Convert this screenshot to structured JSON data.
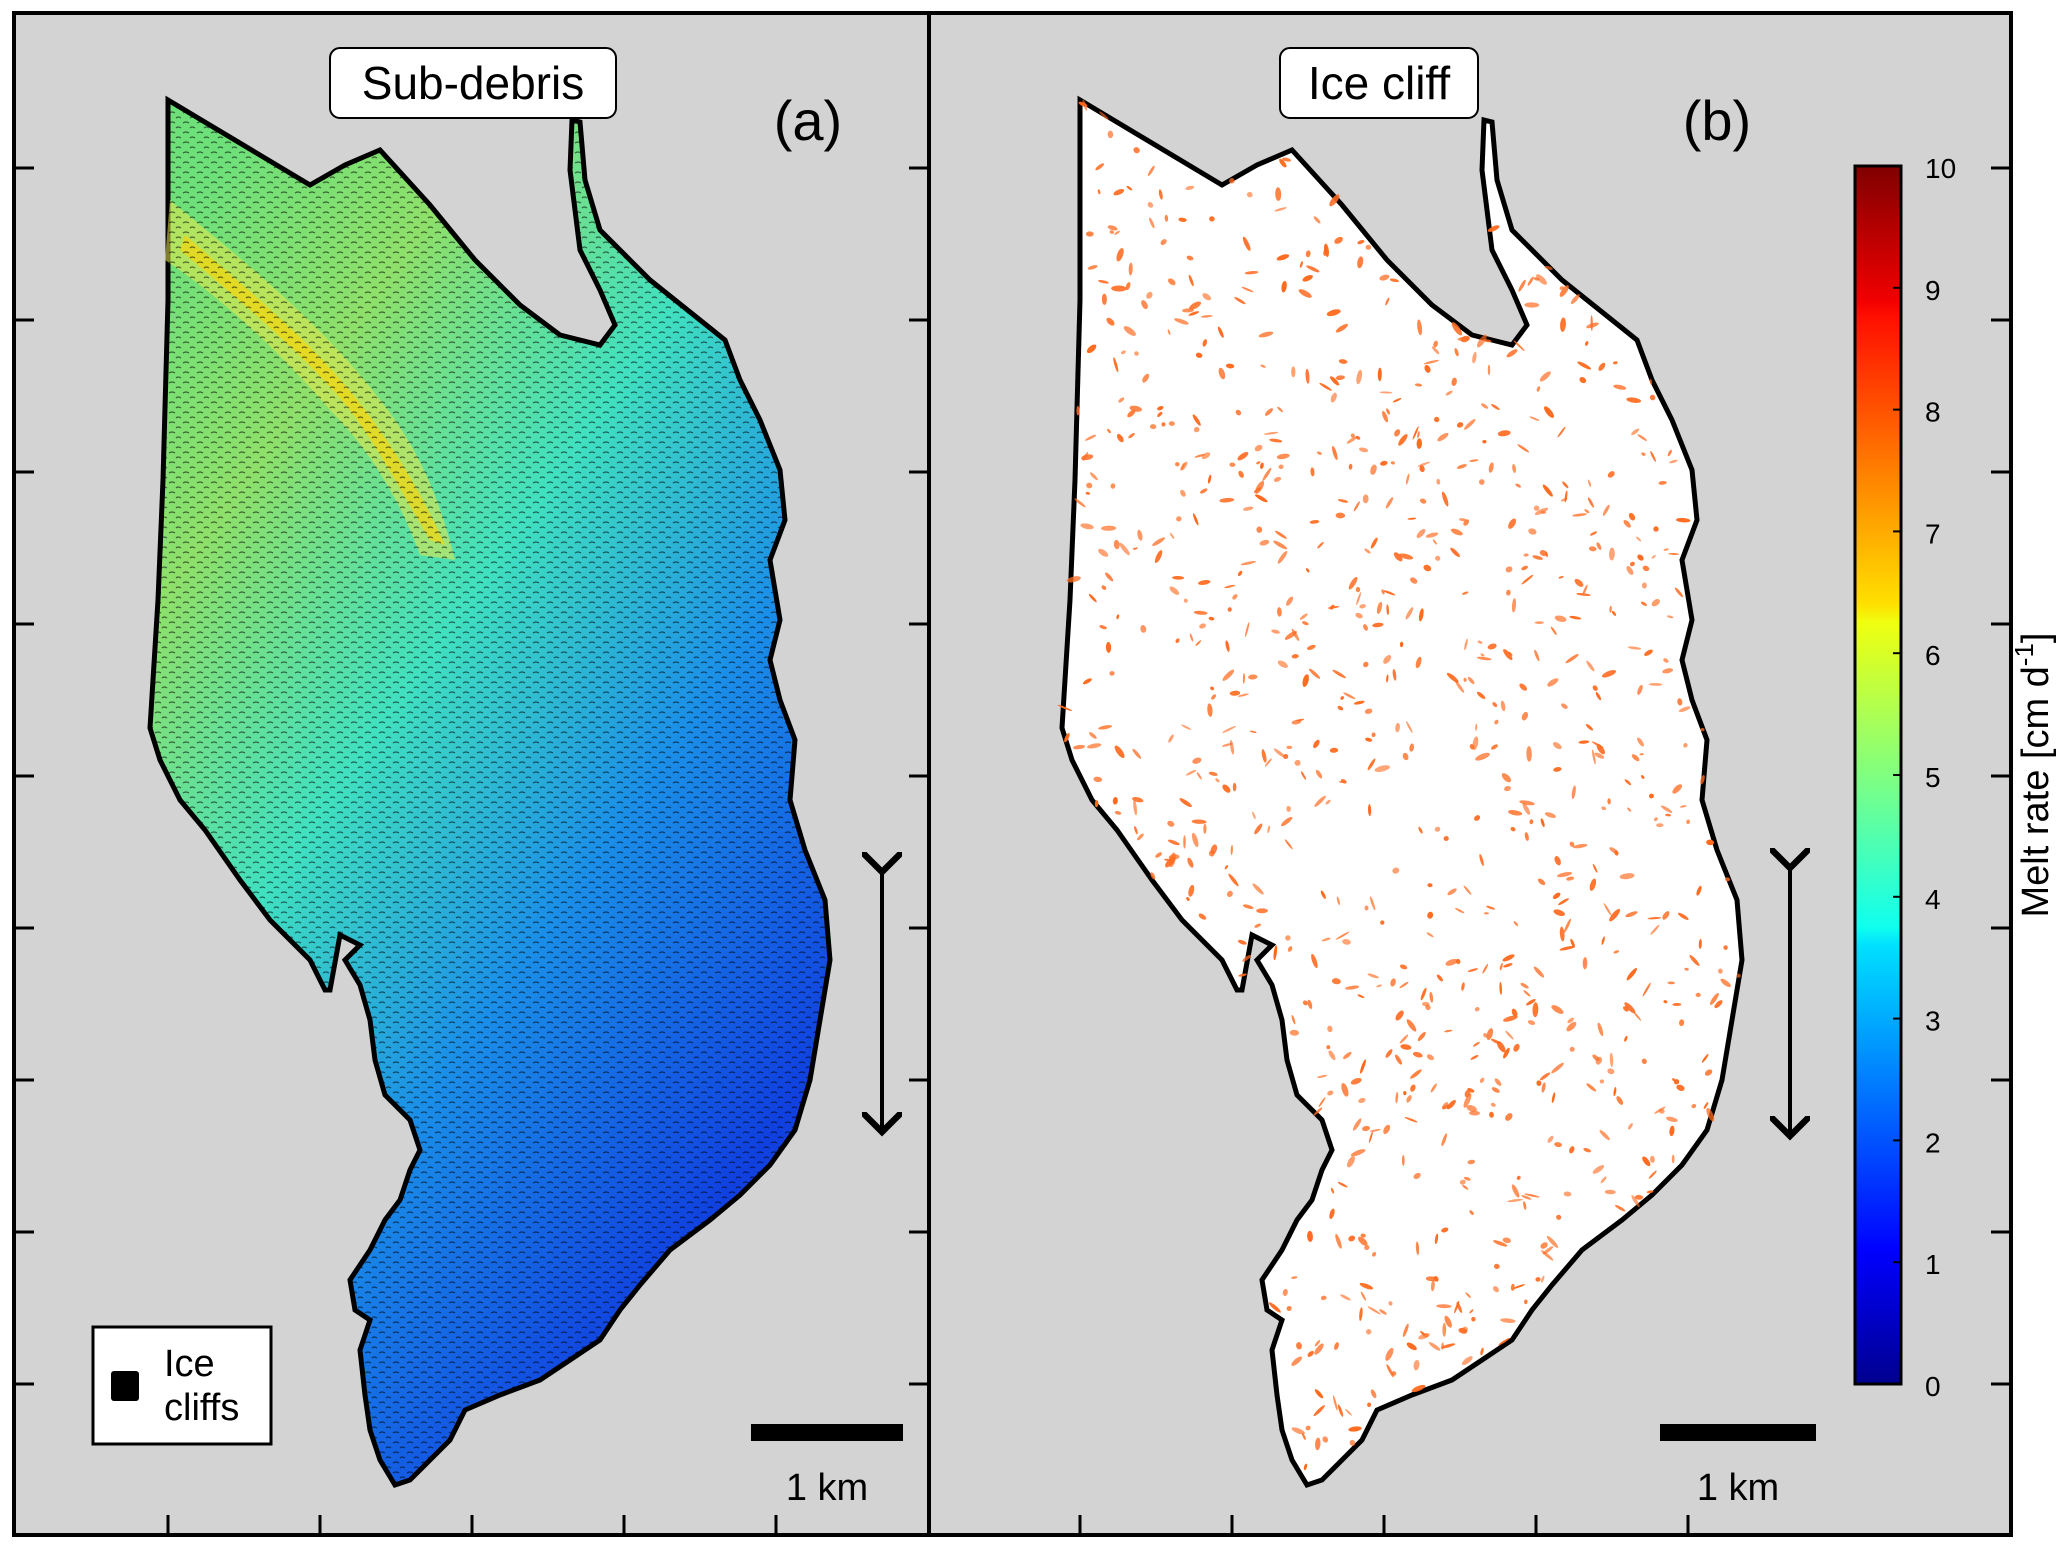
{
  "panels": [
    {
      "id": "a",
      "title": "Sub-debris",
      "letter": "(a)",
      "legend": {
        "label_line1": "Ice",
        "label_line2": "cliffs",
        "swatch_color": "#000000"
      },
      "scale_bar_label": "1 km"
    },
    {
      "id": "b",
      "title": "Ice cliff",
      "letter": "(b)",
      "scale_bar_label": "1 km"
    }
  ],
  "colorbar": {
    "label_main": "Melt rate [cm d",
    "label_sup": "-1",
    "label_end": "]",
    "min": 0,
    "max": 10,
    "ticks": [
      "0",
      "1",
      "2",
      "3",
      "4",
      "5",
      "6",
      "7",
      "8",
      "9",
      "10"
    ],
    "colormap": "jet"
  },
  "colors": {
    "map_background": "#d3d3d3",
    "ice_cliff_dots": "#ff6a1f",
    "outline": "#000000"
  }
}
